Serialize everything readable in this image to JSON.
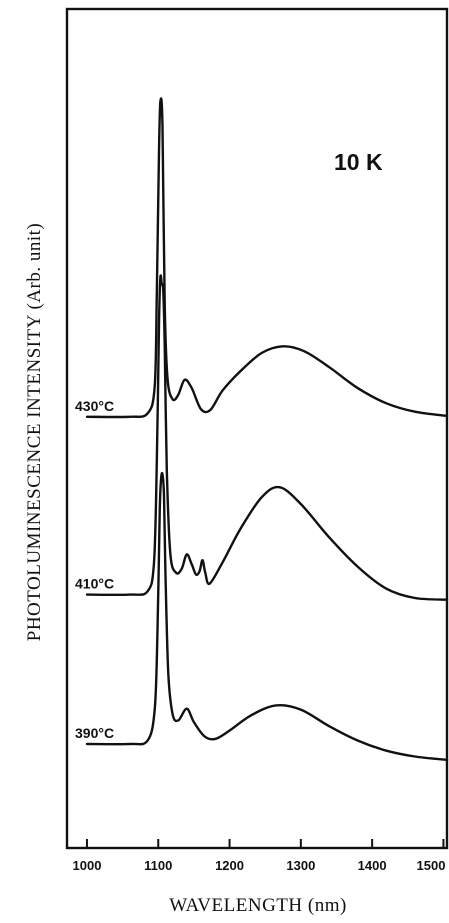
{
  "chart_data": {
    "type": "line",
    "xlabel": "WAVELENGTH (nm)",
    "ylabel": "PHOTOLUMINESCENCE INTENSITY (Arb. unit)",
    "xlim": [
      972,
      1505
    ],
    "ylim": [
      0,
      1
    ],
    "x_ticks": [
      1000,
      1100,
      1200,
      1300,
      1400,
      1500
    ],
    "x_tick_labels": [
      "1000",
      "1100",
      "1200",
      "1300",
      "1400",
      "1500"
    ],
    "y_ticks": [],
    "annotation": "10 K",
    "grid": false,
    "legend": "none",
    "series": [
      {
        "name": "430°C",
        "baseline": 0.514,
        "points": [
          [
            1000,
            0.514
          ],
          [
            1060,
            0.514
          ],
          [
            1085,
            0.518
          ],
          [
            1095,
            0.55
          ],
          [
            1098,
            0.66
          ],
          [
            1101,
            0.83
          ],
          [
            1103,
            0.89
          ],
          [
            1106,
            0.86
          ],
          [
            1109,
            0.65
          ],
          [
            1113,
            0.56
          ],
          [
            1120,
            0.535
          ],
          [
            1128,
            0.54
          ],
          [
            1137,
            0.558
          ],
          [
            1147,
            0.548
          ],
          [
            1160,
            0.523
          ],
          [
            1173,
            0.522
          ],
          [
            1190,
            0.545
          ],
          [
            1215,
            0.568
          ],
          [
            1245,
            0.59
          ],
          [
            1275,
            0.598
          ],
          [
            1305,
            0.592
          ],
          [
            1340,
            0.573
          ],
          [
            1380,
            0.548
          ],
          [
            1420,
            0.53
          ],
          [
            1460,
            0.52
          ],
          [
            1505,
            0.515
          ]
        ]
      },
      {
        "name": "410°C",
        "baseline": 0.302,
        "points": [
          [
            1000,
            0.302
          ],
          [
            1060,
            0.302
          ],
          [
            1085,
            0.306
          ],
          [
            1094,
            0.34
          ],
          [
            1098,
            0.46
          ],
          [
            1101,
            0.625
          ],
          [
            1103,
            0.68
          ],
          [
            1105,
            0.672
          ],
          [
            1107,
            0.665
          ],
          [
            1109,
            0.6
          ],
          [
            1112,
            0.45
          ],
          [
            1117,
            0.35
          ],
          [
            1125,
            0.328
          ],
          [
            1133,
            0.333
          ],
          [
            1140,
            0.35
          ],
          [
            1147,
            0.338
          ],
          [
            1153,
            0.326
          ],
          [
            1158,
            0.33
          ],
          [
            1162,
            0.343
          ],
          [
            1166,
            0.328
          ],
          [
            1172,
            0.315
          ],
          [
            1190,
            0.34
          ],
          [
            1215,
            0.38
          ],
          [
            1245,
            0.418
          ],
          [
            1270,
            0.43
          ],
          [
            1300,
            0.41
          ],
          [
            1340,
            0.37
          ],
          [
            1380,
            0.335
          ],
          [
            1420,
            0.309
          ],
          [
            1460,
            0.298
          ],
          [
            1505,
            0.296
          ]
        ]
      },
      {
        "name": "390°C",
        "baseline": 0.124,
        "points": [
          [
            1000,
            0.124
          ],
          [
            1060,
            0.124
          ],
          [
            1085,
            0.128
          ],
          [
            1095,
            0.165
          ],
          [
            1099,
            0.26
          ],
          [
            1102,
            0.4
          ],
          [
            1104,
            0.44
          ],
          [
            1106,
            0.445
          ],
          [
            1108,
            0.42
          ],
          [
            1110,
            0.33
          ],
          [
            1114,
            0.21
          ],
          [
            1120,
            0.16
          ],
          [
            1128,
            0.152
          ],
          [
            1140,
            0.166
          ],
          [
            1150,
            0.15
          ],
          [
            1165,
            0.133
          ],
          [
            1180,
            0.13
          ],
          [
            1200,
            0.14
          ],
          [
            1230,
            0.158
          ],
          [
            1265,
            0.17
          ],
          [
            1300,
            0.165
          ],
          [
            1340,
            0.145
          ],
          [
            1380,
            0.128
          ],
          [
            1420,
            0.116
          ],
          [
            1460,
            0.109
          ],
          [
            1505,
            0.105
          ]
        ]
      }
    ]
  }
}
